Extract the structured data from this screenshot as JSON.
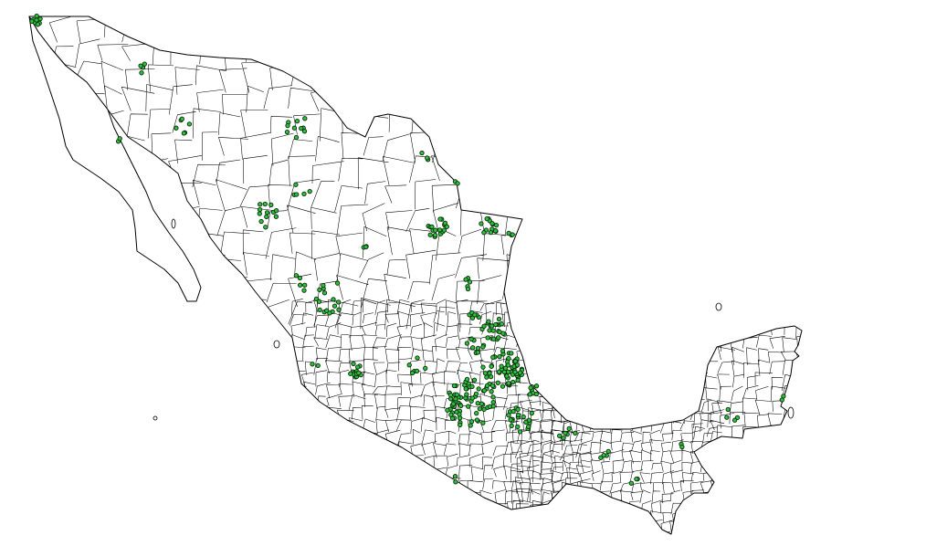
{
  "map": {
    "country": "Mexico",
    "base_layer": "municipal-boundaries",
    "background_color": "#ffffff",
    "boundary_color": "#000000",
    "point_fill_color": "#2fbf3f",
    "point_stroke_color": "#0a2a0a",
    "point_layer": "municipal-point-sites"
  }
}
